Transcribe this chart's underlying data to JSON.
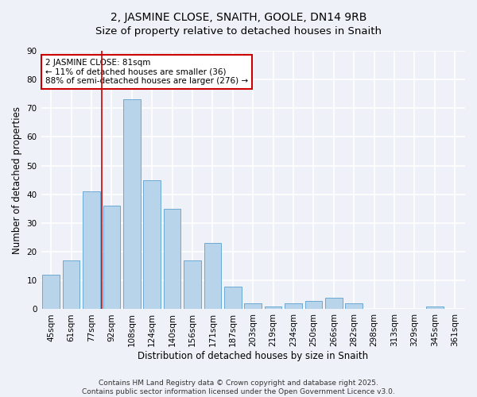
{
  "title": "2, JASMINE CLOSE, SNAITH, GOOLE, DN14 9RB",
  "subtitle": "Size of property relative to detached houses in Snaith",
  "xlabel": "Distribution of detached houses by size in Snaith",
  "ylabel": "Number of detached properties",
  "categories": [
    "45sqm",
    "61sqm",
    "77sqm",
    "92sqm",
    "108sqm",
    "124sqm",
    "140sqm",
    "156sqm",
    "171sqm",
    "187sqm",
    "203sqm",
    "219sqm",
    "234sqm",
    "250sqm",
    "266sqm",
    "282sqm",
    "298sqm",
    "313sqm",
    "329sqm",
    "345sqm",
    "361sqm"
  ],
  "values": [
    12,
    17,
    41,
    36,
    73,
    45,
    35,
    17,
    23,
    8,
    2,
    1,
    2,
    3,
    4,
    2,
    0,
    0,
    0,
    1,
    0
  ],
  "bar_color": "#b8d4ea",
  "bar_edge_color": "#6aaad4",
  "background_color": "#eef2f8",
  "grid_color": "#ffffff",
  "vline_index": 3,
  "vline_color": "#cc0000",
  "annotation_text": "2 JASMINE CLOSE: 81sqm\n← 11% of detached houses are smaller (36)\n88% of semi-detached houses are larger (276) →",
  "annotation_box_facecolor": "#ffffff",
  "annotation_box_edgecolor": "#cc0000",
  "ylim": [
    0,
    90
  ],
  "yticks": [
    0,
    10,
    20,
    30,
    40,
    50,
    60,
    70,
    80,
    90
  ],
  "footnote": "Contains HM Land Registry data © Crown copyright and database right 2025.\nContains public sector information licensed under the Open Government Licence v3.0.",
  "title_fontsize": 10,
  "subtitle_fontsize": 9.5,
  "axis_label_fontsize": 8.5,
  "tick_fontsize": 7.5,
  "annotation_fontsize": 7.5,
  "footnote_fontsize": 6.5
}
